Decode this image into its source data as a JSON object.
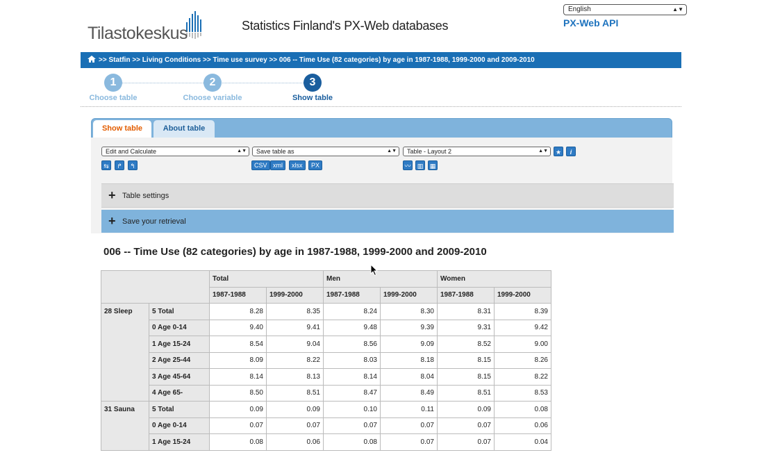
{
  "header": {
    "logo_text": "Tilastokeskus",
    "site_title": "Statistics Finland's PX-Web databases",
    "language": "English",
    "api_link": "PX-Web API"
  },
  "breadcrumb": ">> Statfin >> Living Conditions >> Time use survey >> 006 -- Time Use (82 categories) by age in 1987-1988, 1999-2000 and 2009-2010",
  "steps": [
    {
      "num": "1",
      "label": "Choose table"
    },
    {
      "num": "2",
      "label": "Choose variable"
    },
    {
      "num": "3",
      "label": "Show table"
    }
  ],
  "tabs": {
    "show": "Show table",
    "about": "About table"
  },
  "toolbar": {
    "edit_select": "Edit and Calculate",
    "save_select": "Save table as",
    "layout_select": "Table - Layout 2",
    "formats": [
      "CSV",
      "xml",
      "xlsx",
      "PX"
    ]
  },
  "panels": {
    "settings": "Table settings",
    "save": "Save your retrieval"
  },
  "table": {
    "title": "006 -- Time Use (82 categories) by age in 1987-1988, 1999-2000 and 2009-2010",
    "groups": [
      "Total",
      "Men",
      "Women"
    ],
    "years": [
      "1987-1988",
      "1999-2000"
    ],
    "rows": [
      {
        "cat": "28 Sleep",
        "age": "5 Total",
        "v": [
          "8.28",
          "8.35",
          "8.24",
          "8.30",
          "8.31",
          "8.39"
        ]
      },
      {
        "cat": "",
        "age": "0 Age 0-14",
        "v": [
          "9.40",
          "9.41",
          "9.48",
          "9.39",
          "9.31",
          "9.42"
        ]
      },
      {
        "cat": "",
        "age": "1 Age 15-24",
        "v": [
          "8.54",
          "9.04",
          "8.56",
          "9.09",
          "8.52",
          "9.00"
        ]
      },
      {
        "cat": "",
        "age": "2 Age 25-44",
        "v": [
          "8.09",
          "8.22",
          "8.03",
          "8.18",
          "8.15",
          "8.26"
        ]
      },
      {
        "cat": "",
        "age": "3 Age 45-64",
        "v": [
          "8.14",
          "8.13",
          "8.14",
          "8.04",
          "8.15",
          "8.22"
        ]
      },
      {
        "cat": "",
        "age": "4 Age 65-",
        "v": [
          "8.50",
          "8.51",
          "8.47",
          "8.49",
          "8.51",
          "8.53"
        ]
      },
      {
        "cat": "31 Sauna",
        "age": "5 Total",
        "v": [
          "0.09",
          "0.09",
          "0.10",
          "0.11",
          "0.09",
          "0.08"
        ]
      },
      {
        "cat": "",
        "age": "0 Age 0-14",
        "v": [
          "0.07",
          "0.07",
          "0.07",
          "0.07",
          "0.07",
          "0.06"
        ]
      },
      {
        "cat": "",
        "age": "1 Age 15-24",
        "v": [
          "0.08",
          "0.06",
          "0.08",
          "0.07",
          "0.07",
          "0.04"
        ]
      }
    ]
  }
}
